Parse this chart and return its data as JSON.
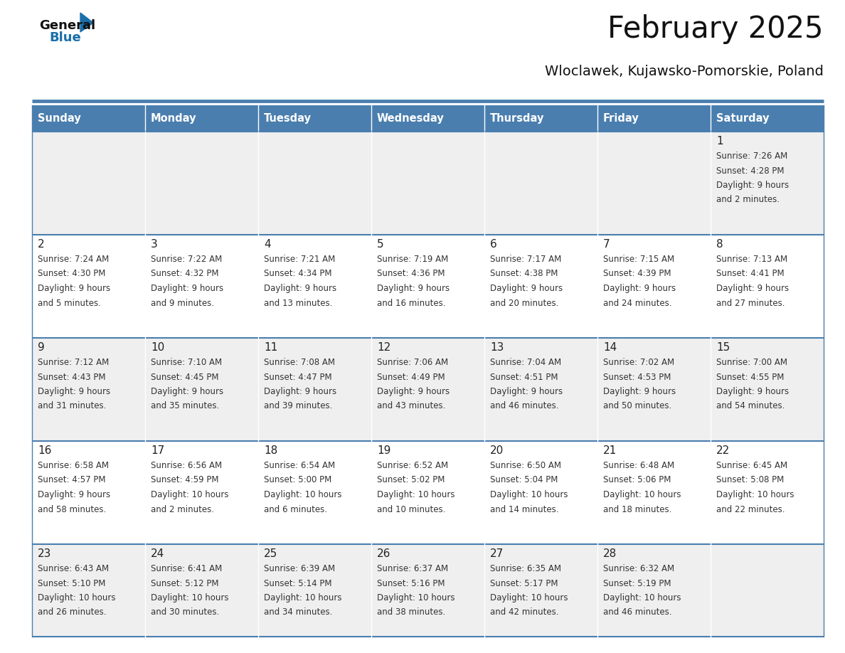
{
  "title": "February 2025",
  "subtitle": "Wloclawek, Kujawsko-Pomorskie, Poland",
  "days_of_week": [
    "Sunday",
    "Monday",
    "Tuesday",
    "Wednesday",
    "Thursday",
    "Friday",
    "Saturday"
  ],
  "header_bg_color": "#4A7EAF",
  "header_text_color": "#FFFFFF",
  "odd_row_bg": "#EFEFEF",
  "even_row_bg": "#FFFFFF",
  "cell_border_color": "#4A7EAF",
  "day_number_color": "#222222",
  "info_text_color": "#333333",
  "title_color": "#111111",
  "subtitle_color": "#111111",
  "logo_general_color": "#111111",
  "logo_blue_color": "#1a6faa",
  "calendar_data": {
    "1": {
      "sunrise": "7:26 AM",
      "sunset": "4:28 PM",
      "daylight_line1": "Daylight: 9 hours",
      "daylight_line2": "and 2 minutes."
    },
    "2": {
      "sunrise": "7:24 AM",
      "sunset": "4:30 PM",
      "daylight_line1": "Daylight: 9 hours",
      "daylight_line2": "and 5 minutes."
    },
    "3": {
      "sunrise": "7:22 AM",
      "sunset": "4:32 PM",
      "daylight_line1": "Daylight: 9 hours",
      "daylight_line2": "and 9 minutes."
    },
    "4": {
      "sunrise": "7:21 AM",
      "sunset": "4:34 PM",
      "daylight_line1": "Daylight: 9 hours",
      "daylight_line2": "and 13 minutes."
    },
    "5": {
      "sunrise": "7:19 AM",
      "sunset": "4:36 PM",
      "daylight_line1": "Daylight: 9 hours",
      "daylight_line2": "and 16 minutes."
    },
    "6": {
      "sunrise": "7:17 AM",
      "sunset": "4:38 PM",
      "daylight_line1": "Daylight: 9 hours",
      "daylight_line2": "and 20 minutes."
    },
    "7": {
      "sunrise": "7:15 AM",
      "sunset": "4:39 PM",
      "daylight_line1": "Daylight: 9 hours",
      "daylight_line2": "and 24 minutes."
    },
    "8": {
      "sunrise": "7:13 AM",
      "sunset": "4:41 PM",
      "daylight_line1": "Daylight: 9 hours",
      "daylight_line2": "and 27 minutes."
    },
    "9": {
      "sunrise": "7:12 AM",
      "sunset": "4:43 PM",
      "daylight_line1": "Daylight: 9 hours",
      "daylight_line2": "and 31 minutes."
    },
    "10": {
      "sunrise": "7:10 AM",
      "sunset": "4:45 PM",
      "daylight_line1": "Daylight: 9 hours",
      "daylight_line2": "and 35 minutes."
    },
    "11": {
      "sunrise": "7:08 AM",
      "sunset": "4:47 PM",
      "daylight_line1": "Daylight: 9 hours",
      "daylight_line2": "and 39 minutes."
    },
    "12": {
      "sunrise": "7:06 AM",
      "sunset": "4:49 PM",
      "daylight_line1": "Daylight: 9 hours",
      "daylight_line2": "and 43 minutes."
    },
    "13": {
      "sunrise": "7:04 AM",
      "sunset": "4:51 PM",
      "daylight_line1": "Daylight: 9 hours",
      "daylight_line2": "and 46 minutes."
    },
    "14": {
      "sunrise": "7:02 AM",
      "sunset": "4:53 PM",
      "daylight_line1": "Daylight: 9 hours",
      "daylight_line2": "and 50 minutes."
    },
    "15": {
      "sunrise": "7:00 AM",
      "sunset": "4:55 PM",
      "daylight_line1": "Daylight: 9 hours",
      "daylight_line2": "and 54 minutes."
    },
    "16": {
      "sunrise": "6:58 AM",
      "sunset": "4:57 PM",
      "daylight_line1": "Daylight: 9 hours",
      "daylight_line2": "and 58 minutes."
    },
    "17": {
      "sunrise": "6:56 AM",
      "sunset": "4:59 PM",
      "daylight_line1": "Daylight: 10 hours",
      "daylight_line2": "and 2 minutes."
    },
    "18": {
      "sunrise": "6:54 AM",
      "sunset": "5:00 PM",
      "daylight_line1": "Daylight: 10 hours",
      "daylight_line2": "and 6 minutes."
    },
    "19": {
      "sunrise": "6:52 AM",
      "sunset": "5:02 PM",
      "daylight_line1": "Daylight: 10 hours",
      "daylight_line2": "and 10 minutes."
    },
    "20": {
      "sunrise": "6:50 AM",
      "sunset": "5:04 PM",
      "daylight_line1": "Daylight: 10 hours",
      "daylight_line2": "and 14 minutes."
    },
    "21": {
      "sunrise": "6:48 AM",
      "sunset": "5:06 PM",
      "daylight_line1": "Daylight: 10 hours",
      "daylight_line2": "and 18 minutes."
    },
    "22": {
      "sunrise": "6:45 AM",
      "sunset": "5:08 PM",
      "daylight_line1": "Daylight: 10 hours",
      "daylight_line2": "and 22 minutes."
    },
    "23": {
      "sunrise": "6:43 AM",
      "sunset": "5:10 PM",
      "daylight_line1": "Daylight: 10 hours",
      "daylight_line2": "and 26 minutes."
    },
    "24": {
      "sunrise": "6:41 AM",
      "sunset": "5:12 PM",
      "daylight_line1": "Daylight: 10 hours",
      "daylight_line2": "and 30 minutes."
    },
    "25": {
      "sunrise": "6:39 AM",
      "sunset": "5:14 PM",
      "daylight_line1": "Daylight: 10 hours",
      "daylight_line2": "and 34 minutes."
    },
    "26": {
      "sunrise": "6:37 AM",
      "sunset": "5:16 PM",
      "daylight_line1": "Daylight: 10 hours",
      "daylight_line2": "and 38 minutes."
    },
    "27": {
      "sunrise": "6:35 AM",
      "sunset": "5:17 PM",
      "daylight_line1": "Daylight: 10 hours",
      "daylight_line2": "and 42 minutes."
    },
    "28": {
      "sunrise": "6:32 AM",
      "sunset": "5:19 PM",
      "daylight_line1": "Daylight: 10 hours",
      "daylight_line2": "and 46 minutes."
    }
  },
  "weeks": [
    [
      null,
      null,
      null,
      null,
      null,
      null,
      1
    ],
    [
      2,
      3,
      4,
      5,
      6,
      7,
      8
    ],
    [
      9,
      10,
      11,
      12,
      13,
      14,
      15
    ],
    [
      16,
      17,
      18,
      19,
      20,
      21,
      22
    ],
    [
      23,
      24,
      25,
      26,
      27,
      28,
      null
    ]
  ]
}
